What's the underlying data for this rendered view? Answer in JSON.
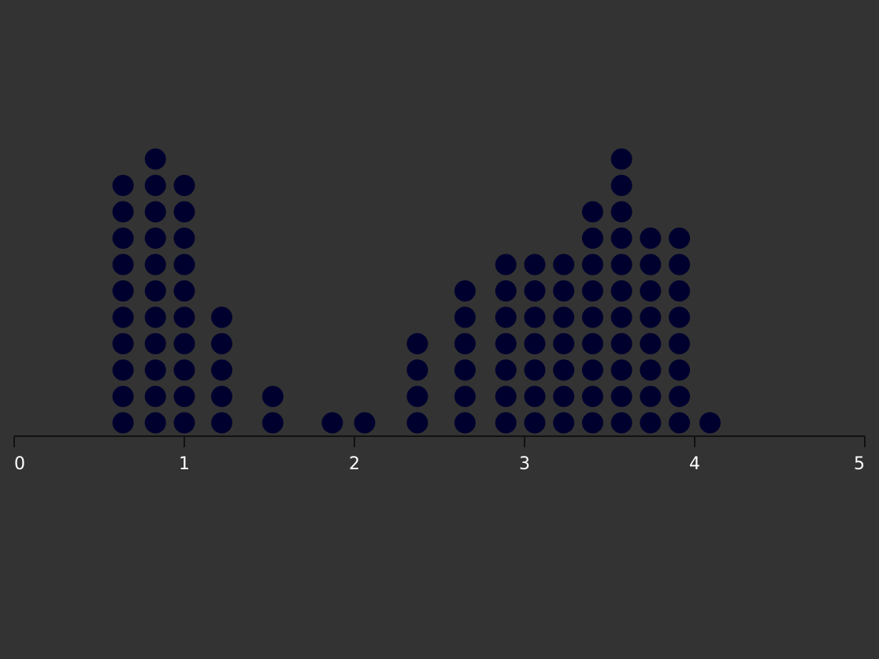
{
  "chart_data": {
    "type": "dot",
    "xlabel": "",
    "xlim": [
      0,
      5
    ],
    "xticks": [
      0,
      1,
      2,
      3,
      4,
      5
    ],
    "x": [
      0.64,
      0.83,
      1.0,
      1.22,
      1.52,
      1.87,
      2.06,
      2.37,
      2.65,
      2.89,
      3.06,
      3.23,
      3.4,
      3.57,
      3.74,
      3.91,
      4.09
    ],
    "counts": [
      10,
      11,
      10,
      5,
      2,
      1,
      1,
      4,
      6,
      7,
      7,
      7,
      9,
      11,
      8,
      8,
      1
    ],
    "grid": false,
    "colors": {
      "background": "#333333",
      "dot": "#00002e",
      "axis": "#111111",
      "text": "#ffffff"
    }
  }
}
